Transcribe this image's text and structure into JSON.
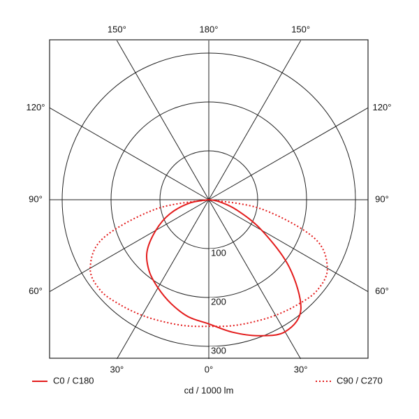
{
  "chart_data": {
    "type": "polar",
    "unit_label": "cd / 1000 lm",
    "rlim": [
      0,
      300
    ],
    "rticks": [
      100,
      200,
      300
    ],
    "angle_ticks": [
      {
        "value": 0,
        "label": "0°"
      },
      {
        "value": 30,
        "label": "30°"
      },
      {
        "value": 60,
        "label": "60°"
      },
      {
        "value": 90,
        "label": "90°"
      },
      {
        "value": 120,
        "label": "120°"
      },
      {
        "value": 150,
        "label": "150°"
      },
      {
        "value": 180,
        "label": "180°"
      },
      {
        "value": -150,
        "label": "150°"
      },
      {
        "value": -120,
        "label": "120°"
      },
      {
        "value": -90,
        "label": "90°"
      },
      {
        "value": -60,
        "label": "60°"
      },
      {
        "value": -30,
        "label": "30°"
      }
    ],
    "x": [
      -90,
      -80,
      -70,
      -60,
      -50,
      -40,
      -30,
      -20,
      -10,
      0,
      10,
      20,
      30,
      40,
      50,
      60,
      70,
      80,
      90
    ],
    "series": [
      {
        "name": "C0 / C180",
        "color": "#e31b1b",
        "dash": "solid",
        "values": [
          0,
          40,
          85,
          125,
          165,
          190,
          208,
          226,
          243,
          254,
          275,
          296,
          312,
          293,
          215,
          125,
          60,
          20,
          0
        ]
      },
      {
        "name": "C90 / C270",
        "color": "#e31b1b",
        "dash": "dotted",
        "values": [
          0,
          110,
          230,
          280,
          289,
          281,
          273,
          266,
          262,
          259,
          262,
          266,
          273,
          281,
          289,
          280,
          230,
          110,
          0
        ]
      }
    ]
  }
}
